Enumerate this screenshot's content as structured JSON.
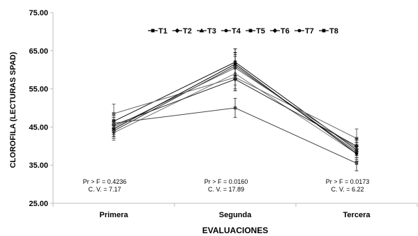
{
  "chart_data": {
    "type": "line",
    "xlabel": "EVALUACIONES",
    "ylabel": "CLOROFILA (LECTURAS SPAD)",
    "categories": [
      "Primera",
      "Segunda",
      "Tercera"
    ],
    "ylim": [
      25,
      75
    ],
    "yticks": [
      "25.00",
      "35.00",
      "45.00",
      "55.00",
      "65.00",
      "75.00"
    ],
    "grid": false,
    "legend_position": "top",
    "series": [
      {
        "name": "T1",
        "values": [
          46.5,
          62.0,
          39.0
        ],
        "error": [
          2.0,
          3.5,
          2.0
        ],
        "color": "#111111",
        "marker": "square"
      },
      {
        "name": "T2",
        "values": [
          44.0,
          61.0,
          38.5
        ],
        "error": [
          2.0,
          3.0,
          2.0
        ],
        "color": "#333333",
        "marker": "diamond"
      },
      {
        "name": "T3",
        "values": [
          45.0,
          60.5,
          39.5
        ],
        "error": [
          2.0,
          3.0,
          2.0
        ],
        "color": "#555555",
        "marker": "triangle"
      },
      {
        "name": "T4",
        "values": [
          43.5,
          59.0,
          38.0
        ],
        "error": [
          2.0,
          3.0,
          2.0
        ],
        "color": "#777777",
        "marker": "circle"
      },
      {
        "name": "T5",
        "values": [
          48.5,
          58.0,
          42.0
        ],
        "error": [
          2.5,
          3.0,
          2.5
        ],
        "color": "#666666",
        "marker": "square"
      },
      {
        "name": "T6",
        "values": [
          45.5,
          57.5,
          40.0
        ],
        "error": [
          2.0,
          3.0,
          2.0
        ],
        "color": "#222222",
        "marker": "diamond"
      },
      {
        "name": "T7",
        "values": [
          44.5,
          61.5,
          38.0
        ],
        "error": [
          2.0,
          3.0,
          2.0
        ],
        "color": "#000000",
        "marker": "circle"
      },
      {
        "name": "T8",
        "values": [
          46.0,
          50.0,
          35.5
        ],
        "error": [
          2.0,
          2.5,
          2.0
        ],
        "color": "#444444",
        "marker": "square"
      }
    ],
    "annotations": [
      {
        "category": "Primera",
        "lines": [
          "Pr > F = 0.4236",
          "C. V. = 7.17"
        ]
      },
      {
        "category": "Segunda",
        "lines": [
          "Pr > F = 0.0160",
          "C. V. = 17.89"
        ]
      },
      {
        "category": "Tercera",
        "lines": [
          "Pr > F = 0.0173",
          "C. V. = 6.22"
        ]
      }
    ]
  }
}
